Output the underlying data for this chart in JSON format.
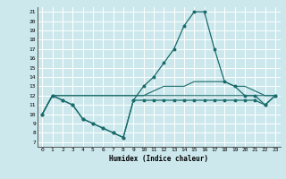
{
  "xlabel": "Humidex (Indice chaleur)",
  "xlim": [
    -0.5,
    23.5
  ],
  "ylim": [
    6.5,
    21.5
  ],
  "xticks": [
    0,
    1,
    2,
    3,
    4,
    5,
    6,
    7,
    8,
    9,
    10,
    11,
    12,
    13,
    14,
    15,
    16,
    17,
    18,
    19,
    20,
    21,
    22,
    23
  ],
  "yticks": [
    7,
    8,
    9,
    10,
    11,
    12,
    13,
    14,
    15,
    16,
    17,
    18,
    19,
    20,
    21
  ],
  "background_color": "#cce8ed",
  "grid_color": "#ffffff",
  "line_color": "#1a6b6b",
  "line1_x": [
    0,
    1,
    2,
    3,
    4,
    5,
    6,
    7,
    8,
    9,
    10,
    11,
    12,
    13,
    14,
    15,
    16,
    17,
    18,
    19,
    20,
    21,
    22,
    23
  ],
  "line1_y": [
    10,
    12,
    11.5,
    11,
    9.5,
    9,
    8.5,
    8,
    7.5,
    11.5,
    13,
    14,
    15.5,
    17,
    19.5,
    21,
    21,
    17,
    13.5,
    13,
    12,
    12,
    11,
    12
  ],
  "line2_x": [
    0,
    1,
    2,
    3,
    4,
    5,
    6,
    7,
    8,
    9,
    10,
    11,
    12,
    13,
    14,
    15,
    16,
    17,
    18,
    19,
    20,
    21,
    22,
    23
  ],
  "line2_y": [
    10,
    12,
    11.5,
    11,
    9.5,
    9,
    8.5,
    8,
    7.5,
    11.5,
    11.5,
    11.5,
    11.5,
    11.5,
    11.5,
    11.5,
    11.5,
    11.5,
    11.5,
    11.5,
    11.5,
    11.5,
    11,
    12
  ],
  "line3_x": [
    0,
    1,
    2,
    3,
    4,
    5,
    6,
    7,
    8,
    9,
    10,
    11,
    12,
    13,
    14,
    15,
    16,
    17,
    18,
    19,
    20,
    21,
    22,
    23
  ],
  "line3_y": [
    10,
    12,
    12,
    12,
    12,
    12,
    12,
    12,
    12,
    12,
    12,
    12,
    12,
    12,
    12,
    12,
    12,
    12,
    12,
    12,
    12,
    12,
    12,
    12
  ],
  "line4_x": [
    0,
    1,
    2,
    3,
    4,
    5,
    6,
    7,
    8,
    9,
    10,
    11,
    12,
    13,
    14,
    15,
    16,
    17,
    18,
    19,
    20,
    21,
    22,
    23
  ],
  "line4_y": [
    10,
    12,
    12,
    12,
    12,
    12,
    12,
    12,
    12,
    12,
    12,
    12.5,
    13,
    13,
    13,
    13.5,
    13.5,
    13.5,
    13.5,
    13,
    13,
    12.5,
    12,
    12
  ]
}
